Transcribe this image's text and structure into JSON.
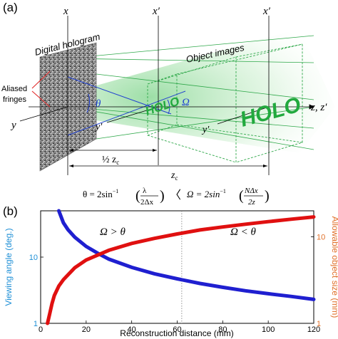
{
  "panel_a": {
    "label": "(a)",
    "hologram_label": "Digital hologram",
    "object_images_label": "Object images",
    "aliased_label_1": "Aliased",
    "aliased_label_2": "fringes",
    "axis_x": "x",
    "axis_x_prime_1": "x′",
    "axis_x_prime_2": "x′",
    "axis_y": "y",
    "axis_y_prime_1": "y′",
    "axis_y_prime_2": "y′",
    "axis_z": "z, z′",
    "theta": "θ",
    "omega": "Ω",
    "holo_small": "HOLO",
    "holo_large": "HOLO",
    "dim_half_zc": "½ z",
    "dim_zc": "z",
    "dim_sub": "c"
  },
  "formula": {
    "lhs": "θ = 2sin",
    "lhs_frac_num": "λ",
    "lhs_frac_den": "2Δx",
    "relation": "〈",
    "rhs": "Ω = 2sin",
    "rhs_frac_num": "NΔx",
    "rhs_frac_den": "2z",
    "exponent": "−1"
  },
  "panel_b": {
    "label": "(b)",
    "region_left": "Ω > θ",
    "region_right": "Ω < θ"
  },
  "colors": {
    "viewing": "#1f1fd0",
    "object": "#e01010",
    "ylabel_left": "#1e8fd6",
    "ylabel_right": "#e0702a",
    "green": "#2fa84a"
  },
  "chart_data": {
    "type": "line",
    "xlabel": "Reconstruction distance (mm)",
    "ylabel_left": "Viewing angle (deg.)",
    "ylabel_right": "Allowable object size (mm)",
    "xlim": [
      0,
      120
    ],
    "x_ticks": [
      0,
      20,
      40,
      60,
      80,
      100,
      120
    ],
    "left_scale": "log",
    "left_ylim": [
      1,
      50
    ],
    "left_ticks": [
      1,
      10
    ],
    "right_scale": "log",
    "right_ylim": [
      1,
      20
    ],
    "right_ticks": [
      1,
      10
    ],
    "crossover_x": 62,
    "series": [
      {
        "axis": "left",
        "color": "#1f1fd0",
        "x": [
          8,
          10,
          12,
          15,
          20,
          25,
          30,
          40,
          50,
          60,
          70,
          80,
          90,
          100,
          110,
          120
        ],
        "y": [
          50,
          33,
          26,
          20,
          14.5,
          11.5,
          9.3,
          7.0,
          5.6,
          4.7,
          4.0,
          3.5,
          3.1,
          2.8,
          2.55,
          2.3
        ]
      },
      {
        "axis": "right",
        "color": "#e01010",
        "x": [
          3,
          4,
          5,
          6,
          8,
          10,
          15,
          20,
          30,
          40,
          50,
          60,
          70,
          80,
          90,
          100,
          110,
          120
        ],
        "y": [
          1.0,
          1.3,
          1.7,
          2.1,
          2.7,
          3.2,
          4.4,
          5.4,
          7.0,
          8.4,
          9.6,
          10.8,
          12.0,
          13.0,
          14.0,
          15.0,
          16.0,
          17.0
        ]
      }
    ]
  }
}
